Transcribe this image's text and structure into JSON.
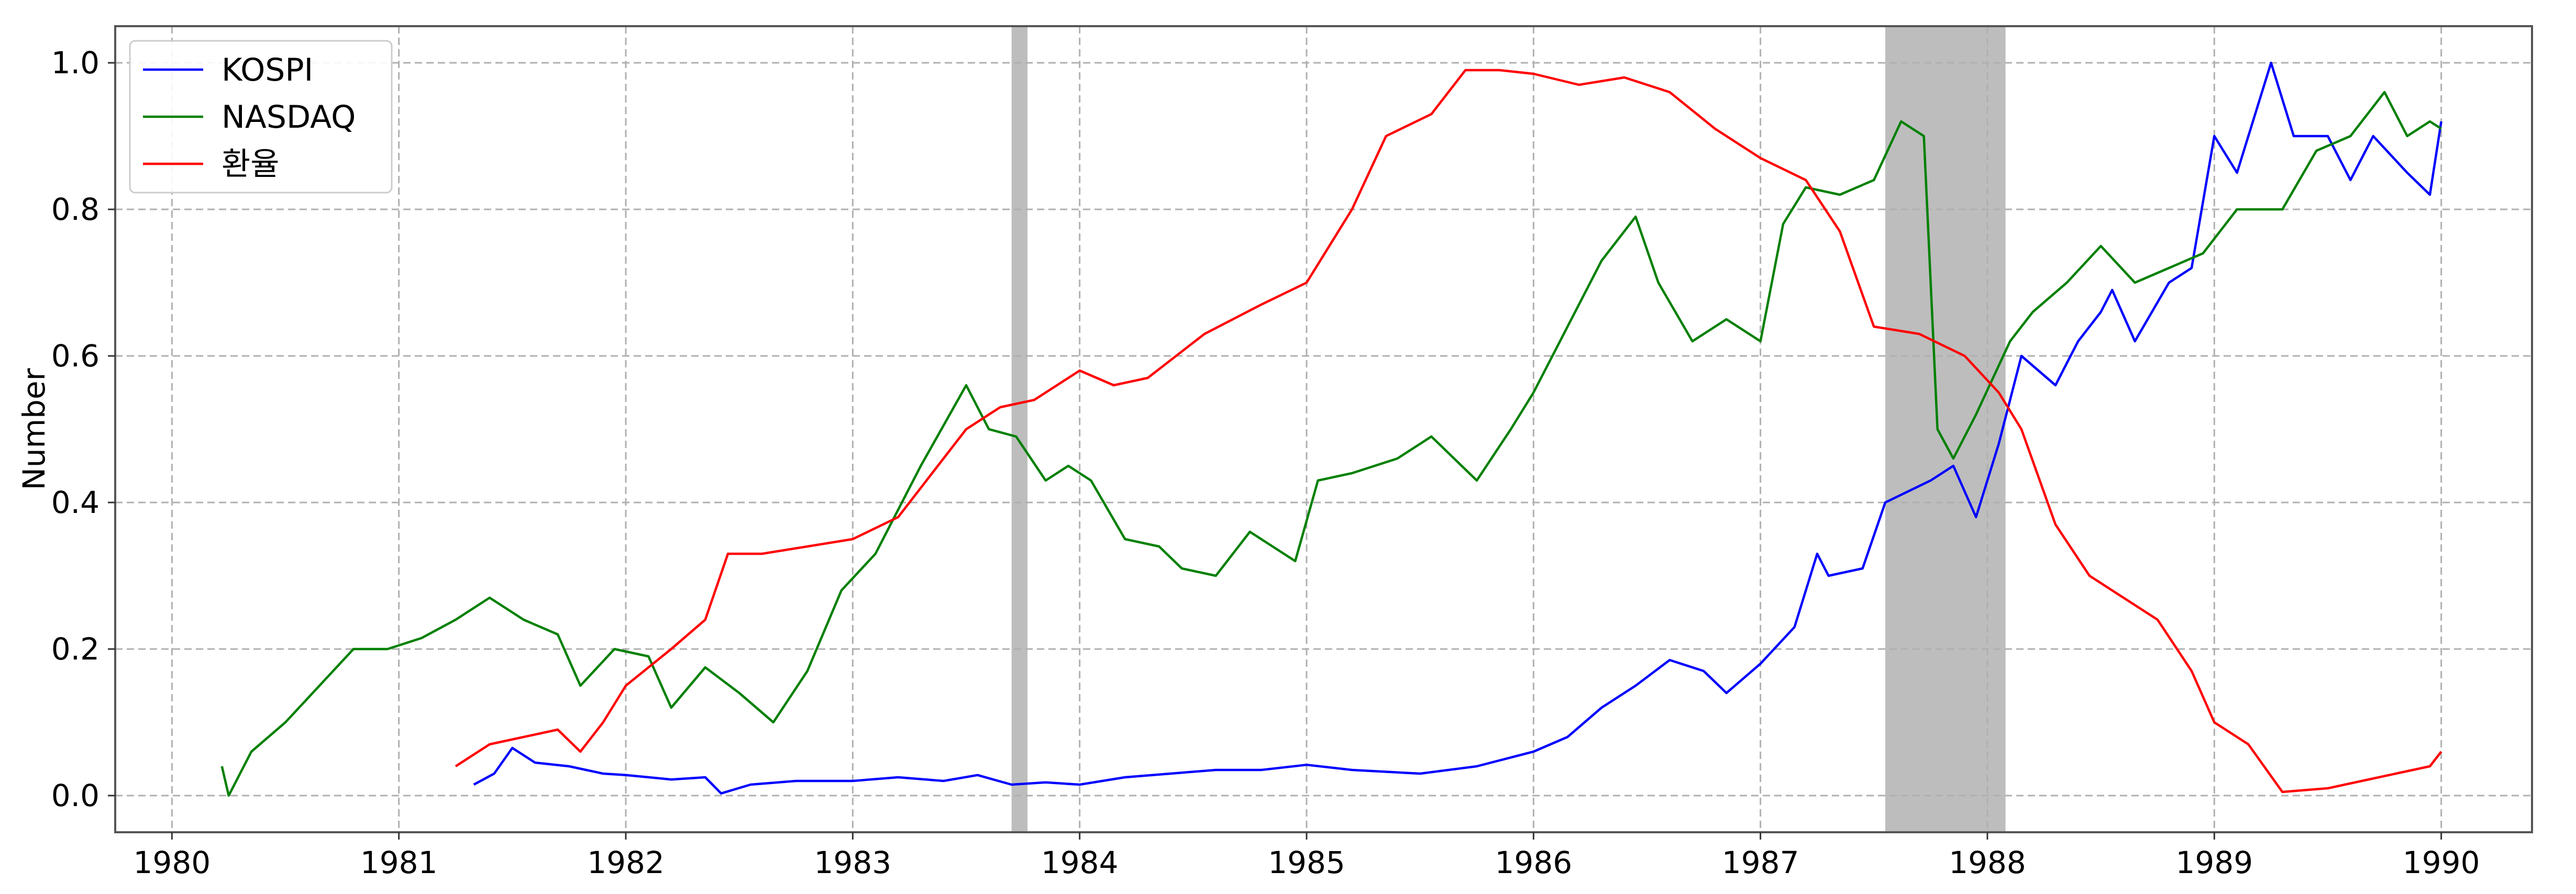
{
  "chart_data": {
    "type": "line",
    "title": "",
    "xlabel": "",
    "ylabel": "Number",
    "xlim": [
      1979.75,
      1990.4
    ],
    "ylim": [
      -0.05,
      1.05
    ],
    "x_ticks": [
      1980,
      1981,
      1982,
      1983,
      1984,
      1985,
      1986,
      1987,
      1988,
      1989,
      1990
    ],
    "x_tick_labels": [
      "1980",
      "1981",
      "1982",
      "1983",
      "1984",
      "1985",
      "1986",
      "1987",
      "1988",
      "1989",
      "1990"
    ],
    "y_ticks": [
      0.0,
      0.2,
      0.4,
      0.6,
      0.8,
      1.0
    ],
    "y_tick_labels": [
      "0.0",
      "0.2",
      "0.4",
      "0.6",
      "0.8",
      "1.0"
    ],
    "grid": true,
    "legend_position": "top-left",
    "shaded_periods": [
      [
        1983.7,
        1983.77
      ],
      [
        1987.55,
        1988.08
      ]
    ],
    "series": [
      {
        "name": "KOSPI",
        "color": "#0000ff",
        "points": [
          [
            1981.33,
            0.015
          ],
          [
            1981.42,
            0.03
          ],
          [
            1981.5,
            0.065
          ],
          [
            1981.6,
            0.045
          ],
          [
            1981.75,
            0.04
          ],
          [
            1981.9,
            0.03
          ],
          [
            1982.0,
            0.028
          ],
          [
            1982.2,
            0.022
          ],
          [
            1982.35,
            0.025
          ],
          [
            1982.42,
            0.003
          ],
          [
            1982.55,
            0.015
          ],
          [
            1982.75,
            0.02
          ],
          [
            1983.0,
            0.02
          ],
          [
            1983.2,
            0.025
          ],
          [
            1983.4,
            0.02
          ],
          [
            1983.55,
            0.028
          ],
          [
            1983.7,
            0.015
          ],
          [
            1983.85,
            0.018
          ],
          [
            1984.0,
            0.015
          ],
          [
            1984.2,
            0.025
          ],
          [
            1984.4,
            0.03
          ],
          [
            1984.6,
            0.035
          ],
          [
            1984.8,
            0.035
          ],
          [
            1985.0,
            0.042
          ],
          [
            1985.2,
            0.035
          ],
          [
            1985.5,
            0.03
          ],
          [
            1985.75,
            0.04
          ],
          [
            1986.0,
            0.06
          ],
          [
            1986.15,
            0.08
          ],
          [
            1986.3,
            0.12
          ],
          [
            1986.45,
            0.15
          ],
          [
            1986.6,
            0.185
          ],
          [
            1986.75,
            0.17
          ],
          [
            1986.85,
            0.14
          ],
          [
            1987.0,
            0.18
          ],
          [
            1987.15,
            0.23
          ],
          [
            1987.25,
            0.33
          ],
          [
            1987.3,
            0.3
          ],
          [
            1987.45,
            0.31
          ],
          [
            1987.55,
            0.4
          ],
          [
            1987.75,
            0.43
          ],
          [
            1987.85,
            0.45
          ],
          [
            1987.95,
            0.38
          ],
          [
            1988.05,
            0.48
          ],
          [
            1988.15,
            0.6
          ],
          [
            1988.3,
            0.56
          ],
          [
            1988.4,
            0.62
          ],
          [
            1988.5,
            0.66
          ],
          [
            1988.55,
            0.69
          ],
          [
            1988.65,
            0.62
          ],
          [
            1988.8,
            0.7
          ],
          [
            1988.9,
            0.72
          ],
          [
            1989.0,
            0.9
          ],
          [
            1989.1,
            0.85
          ],
          [
            1989.25,
            1.0
          ],
          [
            1989.35,
            0.9
          ],
          [
            1989.5,
            0.9
          ],
          [
            1989.6,
            0.84
          ],
          [
            1989.7,
            0.9
          ],
          [
            1989.85,
            0.85
          ],
          [
            1989.95,
            0.82
          ],
          [
            1990.0,
            0.92
          ]
        ]
      },
      {
        "name": "NASDAQ",
        "color": "#008000",
        "points": [
          [
            1980.22,
            0.04
          ],
          [
            1980.25,
            0.0
          ],
          [
            1980.35,
            0.06
          ],
          [
            1980.5,
            0.1
          ],
          [
            1980.65,
            0.15
          ],
          [
            1980.8,
            0.2
          ],
          [
            1980.95,
            0.2
          ],
          [
            1981.1,
            0.215
          ],
          [
            1981.25,
            0.24
          ],
          [
            1981.4,
            0.27
          ],
          [
            1981.55,
            0.24
          ],
          [
            1981.7,
            0.22
          ],
          [
            1981.8,
            0.15
          ],
          [
            1981.95,
            0.2
          ],
          [
            1982.1,
            0.19
          ],
          [
            1982.2,
            0.12
          ],
          [
            1982.35,
            0.175
          ],
          [
            1982.5,
            0.14
          ],
          [
            1982.65,
            0.1
          ],
          [
            1982.8,
            0.17
          ],
          [
            1982.95,
            0.28
          ],
          [
            1983.1,
            0.33
          ],
          [
            1983.3,
            0.45
          ],
          [
            1983.5,
            0.56
          ],
          [
            1983.6,
            0.5
          ],
          [
            1983.72,
            0.49
          ],
          [
            1983.85,
            0.43
          ],
          [
            1983.95,
            0.45
          ],
          [
            1984.05,
            0.43
          ],
          [
            1984.2,
            0.35
          ],
          [
            1984.35,
            0.34
          ],
          [
            1984.45,
            0.31
          ],
          [
            1984.6,
            0.3
          ],
          [
            1984.75,
            0.36
          ],
          [
            1984.95,
            0.32
          ],
          [
            1985.05,
            0.43
          ],
          [
            1985.2,
            0.44
          ],
          [
            1985.4,
            0.46
          ],
          [
            1985.55,
            0.49
          ],
          [
            1985.75,
            0.43
          ],
          [
            1985.9,
            0.5
          ],
          [
            1986.0,
            0.55
          ],
          [
            1986.15,
            0.64
          ],
          [
            1986.3,
            0.73
          ],
          [
            1986.45,
            0.79
          ],
          [
            1986.55,
            0.7
          ],
          [
            1986.7,
            0.62
          ],
          [
            1986.85,
            0.65
          ],
          [
            1987.0,
            0.62
          ],
          [
            1987.1,
            0.78
          ],
          [
            1987.2,
            0.83
          ],
          [
            1987.35,
            0.82
          ],
          [
            1987.5,
            0.84
          ],
          [
            1987.62,
            0.92
          ],
          [
            1987.72,
            0.9
          ],
          [
            1987.78,
            0.5
          ],
          [
            1987.85,
            0.46
          ],
          [
            1987.95,
            0.52
          ],
          [
            1988.1,
            0.62
          ],
          [
            1988.2,
            0.66
          ],
          [
            1988.35,
            0.7
          ],
          [
            1988.5,
            0.75
          ],
          [
            1988.65,
            0.7
          ],
          [
            1988.8,
            0.72
          ],
          [
            1988.95,
            0.74
          ],
          [
            1989.1,
            0.8
          ],
          [
            1989.3,
            0.8
          ],
          [
            1989.45,
            0.88
          ],
          [
            1989.6,
            0.9
          ],
          [
            1989.75,
            0.96
          ],
          [
            1989.85,
            0.9
          ],
          [
            1989.95,
            0.92
          ],
          [
            1990.0,
            0.91
          ]
        ]
      },
      {
        "name": "환율",
        "color": "#ff0000",
        "points": [
          [
            1981.25,
            0.04
          ],
          [
            1981.4,
            0.07
          ],
          [
            1981.55,
            0.08
          ],
          [
            1981.7,
            0.09
          ],
          [
            1981.8,
            0.06
          ],
          [
            1981.9,
            0.1
          ],
          [
            1982.0,
            0.15
          ],
          [
            1982.2,
            0.2
          ],
          [
            1982.35,
            0.24
          ],
          [
            1982.45,
            0.33
          ],
          [
            1982.6,
            0.33
          ],
          [
            1982.8,
            0.34
          ],
          [
            1983.0,
            0.35
          ],
          [
            1983.2,
            0.38
          ],
          [
            1983.35,
            0.44
          ],
          [
            1983.5,
            0.5
          ],
          [
            1983.65,
            0.53
          ],
          [
            1983.8,
            0.54
          ],
          [
            1984.0,
            0.58
          ],
          [
            1984.15,
            0.56
          ],
          [
            1984.3,
            0.57
          ],
          [
            1984.55,
            0.63
          ],
          [
            1984.8,
            0.67
          ],
          [
            1985.0,
            0.7
          ],
          [
            1985.2,
            0.8
          ],
          [
            1985.35,
            0.9
          ],
          [
            1985.55,
            0.93
          ],
          [
            1985.7,
            0.99
          ],
          [
            1985.85,
            0.99
          ],
          [
            1986.0,
            0.985
          ],
          [
            1986.2,
            0.97
          ],
          [
            1986.4,
            0.98
          ],
          [
            1986.6,
            0.96
          ],
          [
            1986.8,
            0.91
          ],
          [
            1987.0,
            0.87
          ],
          [
            1987.2,
            0.84
          ],
          [
            1987.35,
            0.77
          ],
          [
            1987.5,
            0.64
          ],
          [
            1987.7,
            0.63
          ],
          [
            1987.9,
            0.6
          ],
          [
            1988.05,
            0.55
          ],
          [
            1988.15,
            0.5
          ],
          [
            1988.3,
            0.37
          ],
          [
            1988.45,
            0.3
          ],
          [
            1988.6,
            0.27
          ],
          [
            1988.75,
            0.24
          ],
          [
            1988.9,
            0.17
          ],
          [
            1989.0,
            0.1
          ],
          [
            1989.15,
            0.07
          ],
          [
            1989.3,
            0.005
          ],
          [
            1989.5,
            0.01
          ],
          [
            1989.65,
            0.02
          ],
          [
            1989.8,
            0.03
          ],
          [
            1989.95,
            0.04
          ],
          [
            1990.0,
            0.06
          ]
        ]
      }
    ]
  }
}
